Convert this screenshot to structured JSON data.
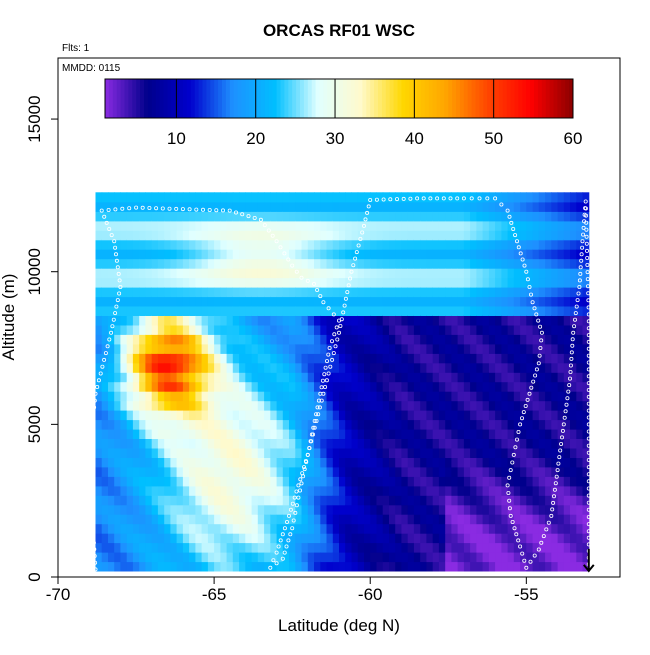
{
  "chart_data": {
    "type": "heatmap",
    "title": "ORCAS RF01 WSC",
    "info_lines": [
      "Flts: 1",
      "MMDD: 0115"
    ],
    "xlabel": "Latitude (deg N)",
    "ylabel": "Altitude (m)",
    "xlim": [
      -70,
      -52
    ],
    "ylim": [
      0,
      17000
    ],
    "x_ticks": [
      -70,
      -65,
      -60,
      -55
    ],
    "x_tick_labels": [
      "-70",
      "-65",
      "-60",
      "-55"
    ],
    "y_ticks": [
      0,
      5000,
      10000,
      15000
    ],
    "y_tick_labels": [
      "0",
      "5000",
      "10000",
      "15000"
    ],
    "colorbar": {
      "min": 1,
      "max": 60,
      "ticks": [
        10,
        20,
        30,
        40,
        50,
        60
      ],
      "tick_labels": [
        "10",
        "20",
        "30",
        "40",
        "50",
        "60"
      ],
      "colors": [
        "#8a2be2",
        "#00008b",
        "#0000cd",
        "#1e90ff",
        "#00bfff",
        "#e0ffff",
        "#fffacd",
        "#ffd700",
        "#ffa500",
        "#ff4500",
        "#ff0000",
        "#8b0000"
      ]
    },
    "field_extent": {
      "lat": [
        -68.8,
        -53
      ],
      "alt": [
        200,
        12400
      ]
    },
    "flight_track": [
      [
        -68.8,
        250
      ],
      [
        -68.9,
        2000
      ],
      [
        -69.0,
        4000
      ],
      [
        -68.8,
        6000
      ],
      [
        -68.3,
        8000
      ],
      [
        -68.0,
        9500
      ],
      [
        -68.2,
        11000
      ],
      [
        -68.6,
        12000
      ],
      [
        -67.5,
        12100
      ],
      [
        -66.0,
        12050
      ],
      [
        -64.5,
        12000
      ],
      [
        -63.5,
        11700
      ],
      [
        -63.0,
        11000
      ],
      [
        -62.5,
        10200
      ],
      [
        -62.2,
        9800
      ],
      [
        -61.8,
        9600
      ],
      [
        -61.5,
        9000
      ],
      [
        -61.0,
        8400
      ],
      [
        -61.3,
        7500
      ],
      [
        -61.6,
        6000
      ],
      [
        -62.0,
        4000
      ],
      [
        -62.3,
        3000
      ],
      [
        -62.6,
        2000
      ],
      [
        -63.0,
        800
      ],
      [
        -63.2,
        300
      ],
      [
        -62.8,
        600
      ],
      [
        -62.5,
        1600
      ],
      [
        -62.3,
        2600
      ],
      [
        -62.0,
        4000
      ],
      [
        -61.5,
        6000
      ],
      [
        -61.0,
        8000
      ],
      [
        -60.6,
        10000
      ],
      [
        -60.2,
        11500
      ],
      [
        -60.0,
        12350
      ],
      [
        -58.5,
        12400
      ],
      [
        -57.0,
        12400
      ],
      [
        -56.0,
        12400
      ],
      [
        -55.6,
        12000
      ],
      [
        -55.3,
        11000
      ],
      [
        -55.0,
        10000
      ],
      [
        -54.8,
        9000
      ],
      [
        -54.5,
        8000
      ],
      [
        -54.6,
        7000
      ],
      [
        -54.9,
        6000
      ],
      [
        -55.2,
        5000
      ],
      [
        -55.4,
        4000
      ],
      [
        -55.6,
        3000
      ],
      [
        -55.5,
        2000
      ],
      [
        -55.2,
        1000
      ],
      [
        -55.0,
        300
      ],
      [
        -54.6,
        900
      ],
      [
        -54.2,
        2000
      ],
      [
        -54.0,
        3500
      ],
      [
        -53.8,
        5000
      ],
      [
        -53.6,
        6500
      ],
      [
        -53.5,
        8000
      ],
      [
        -53.3,
        9500
      ],
      [
        -53.2,
        11000
      ],
      [
        -53.1,
        12300
      ],
      [
        -53.0,
        8600
      ],
      [
        -53.0,
        5000
      ],
      [
        -53.0,
        1500
      ],
      [
        -53.0,
        200
      ]
    ]
  }
}
